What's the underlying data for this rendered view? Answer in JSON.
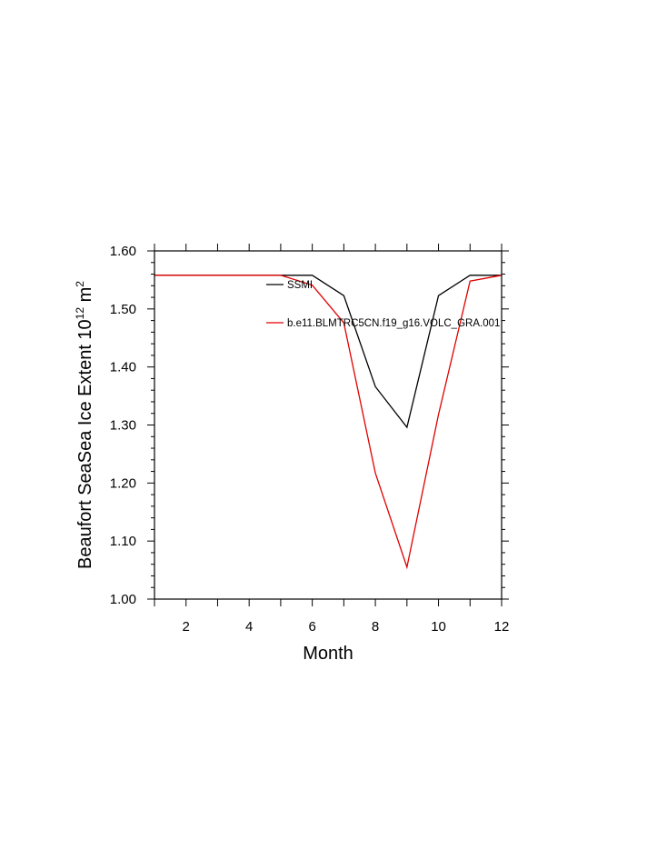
{
  "chart_data": {
    "type": "line",
    "xlabel": "Month",
    "ylabel": {
      "prefix": "Beaufort SeaSea Ice Extent 10",
      "exponent": "12",
      "unit": " m",
      "unit_exponent": "2"
    },
    "xlim": [
      1,
      12
    ],
    "ylim": [
      1.0,
      1.6
    ],
    "x_ticks": [
      2,
      4,
      6,
      8,
      10,
      12
    ],
    "y_ticks": [
      1.0,
      1.1,
      1.2,
      1.3,
      1.4,
      1.5,
      1.6
    ],
    "y_tick_labels": [
      "1.00",
      "1.10",
      "1.20",
      "1.30",
      "1.40",
      "1.50",
      "1.60"
    ],
    "x": [
      1,
      2,
      3,
      4,
      5,
      6,
      7,
      8,
      9,
      10,
      11,
      12
    ],
    "series": [
      {
        "name": "SSMI",
        "color": "#000000",
        "values": [
          1.558,
          1.558,
          1.558,
          1.558,
          1.558,
          1.558,
          1.523,
          1.366,
          1.296,
          1.523,
          1.558,
          1.558
        ]
      },
      {
        "name": "b.e11.BLMTRC5CN.f19_g16.VOLC_GRA.001",
        "color": "#e00000",
        "values": [
          1.558,
          1.558,
          1.558,
          1.558,
          1.558,
          1.541,
          1.476,
          1.217,
          1.055,
          1.318,
          1.548,
          1.558
        ]
      }
    ],
    "grid": false,
    "legend_position": "top-right inside"
  }
}
